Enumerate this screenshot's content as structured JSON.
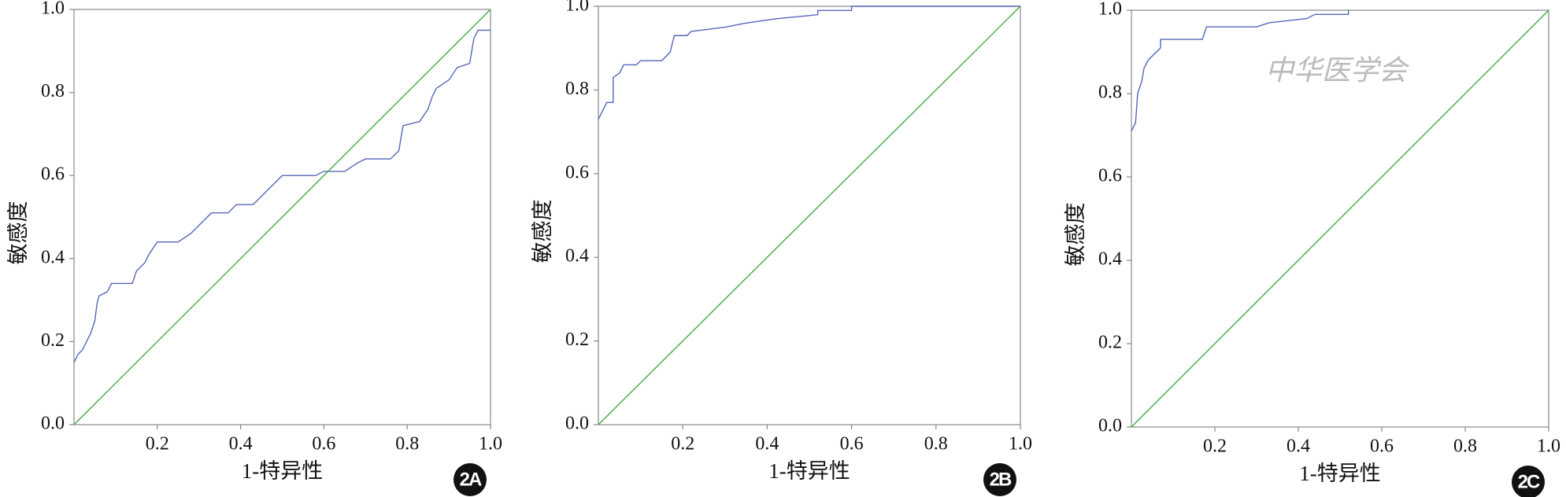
{
  "chart_data": [
    {
      "type": "line",
      "ylabel": "敏感度",
      "xlabel": "1-特异性",
      "panel_label": "2A",
      "xlim": [
        0,
        1
      ],
      "ylim": [
        0,
        1
      ],
      "xticks": [
        0.2,
        0.4,
        0.6,
        0.8,
        {
          "value": 1,
          "label": "1.0"
        }
      ],
      "yticks": [
        {
          "value": 0,
          "label": "0.0"
        },
        0.2,
        0.4,
        0.6,
        0.8,
        {
          "value": 1,
          "label": "1.0"
        }
      ],
      "series": [
        {
          "color": "#5566bb",
          "x": [
            0,
            0.01,
            0.02,
            0.03,
            0.04,
            0.05,
            0.055,
            0.06,
            0.08,
            0.09,
            0.14,
            0.15,
            0.17,
            0.18,
            0.2,
            0.25,
            0.28,
            0.31,
            0.33,
            0.37,
            0.39,
            0.43,
            0.47,
            0.5,
            0.58,
            0.6,
            0.65,
            0.68,
            0.7,
            0.76,
            0.78,
            0.79,
            0.83,
            0.85,
            0.86,
            0.87,
            0.9,
            0.92,
            0.95,
            0.96,
            0.97,
            1.0
          ],
          "values": [
            0.15,
            0.17,
            0.18,
            0.2,
            0.22,
            0.25,
            0.29,
            0.31,
            0.32,
            0.34,
            0.34,
            0.37,
            0.39,
            0.41,
            0.44,
            0.44,
            0.46,
            0.49,
            0.51,
            0.51,
            0.53,
            0.53,
            0.57,
            0.6,
            0.6,
            0.61,
            0.61,
            0.63,
            0.64,
            0.64,
            0.66,
            0.72,
            0.73,
            0.76,
            0.79,
            0.81,
            0.83,
            0.86,
            0.87,
            0.93,
            0.95,
            0.95
          ]
        },
        {
          "color": "#44aa44",
          "x": [
            0,
            1
          ],
          "values": [
            0,
            1
          ]
        }
      ]
    },
    {
      "type": "line",
      "ylabel": "敏感度",
      "xlabel": "1-特异性",
      "panel_label": "2B",
      "xlim": [
        0,
        1
      ],
      "ylim": [
        0,
        1
      ],
      "xticks": [
        0.2,
        0.4,
        0.6,
        0.8,
        {
          "value": 1,
          "label": "1.0"
        }
      ],
      "yticks": [
        {
          "value": 0,
          "label": "0.0"
        },
        0.2,
        0.4,
        0.6,
        0.8,
        {
          "value": 1,
          "label": "1.0"
        }
      ],
      "series": [
        {
          "color": "#5566bb",
          "x": [
            0,
            0.01,
            0.02,
            0.035,
            0.035,
            0.05,
            0.06,
            0.09,
            0.1,
            0.15,
            0.17,
            0.18,
            0.21,
            0.22,
            0.3,
            0.35,
            0.42,
            0.52,
            0.52,
            0.6,
            0.6,
            1.0
          ],
          "values": [
            0.73,
            0.75,
            0.77,
            0.77,
            0.83,
            0.84,
            0.86,
            0.86,
            0.87,
            0.87,
            0.89,
            0.93,
            0.93,
            0.94,
            0.95,
            0.96,
            0.97,
            0.98,
            0.99,
            0.99,
            1.0,
            1.0
          ]
        },
        {
          "color": "#44aa44",
          "x": [
            0,
            1
          ],
          "values": [
            0,
            1
          ]
        }
      ]
    },
    {
      "type": "line",
      "ylabel": "敏感度",
      "xlabel": "1-特异性",
      "panel_label": "2C",
      "watermark": "中华医学会",
      "xlim": [
        0,
        1
      ],
      "ylim": [
        0,
        1
      ],
      "xticks": [
        0.2,
        0.4,
        0.6,
        0.8,
        {
          "value": 1,
          "label": "1.0"
        }
      ],
      "yticks": [
        {
          "value": 0,
          "label": "0.0"
        },
        0.2,
        0.4,
        0.6,
        0.8,
        {
          "value": 1,
          "label": "1.0"
        }
      ],
      "series": [
        {
          "color": "#5566bb",
          "x": [
            0,
            0.01,
            0.015,
            0.025,
            0.03,
            0.04,
            0.05,
            0.06,
            0.07,
            0.07,
            0.17,
            0.18,
            0.3,
            0.33,
            0.42,
            0.44,
            0.52,
            0.52
          ],
          "values": [
            0.71,
            0.73,
            0.8,
            0.83,
            0.86,
            0.88,
            0.89,
            0.9,
            0.91,
            0.93,
            0.93,
            0.96,
            0.96,
            0.97,
            0.98,
            0.99,
            0.99,
            1.0
          ]
        },
        {
          "color": "#44aa44",
          "x": [
            0,
            1
          ],
          "values": [
            0,
            1
          ]
        }
      ]
    }
  ]
}
